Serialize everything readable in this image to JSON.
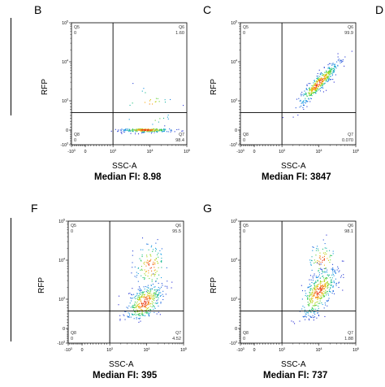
{
  "panel_letters_partial": [
    "D"
  ],
  "chart_data": [
    {
      "panel": "B",
      "type": "scatter",
      "xlabel": "SSC-A",
      "ylabel": "RFP",
      "caption": "Median FI: 8.98",
      "x_ticks": [
        "-10^3",
        "0",
        "10^3",
        "10^4",
        "10^5"
      ],
      "y_ticks": [
        "-10^3",
        "0",
        "10^3",
        "10^4",
        "10^5"
      ],
      "gate_x": 1000,
      "gate_y": 600,
      "quadrants": [
        {
          "name": "Q5",
          "value": "0"
        },
        {
          "name": "Q6",
          "value": "1.60"
        },
        {
          "name": "Q7",
          "value": "98.4"
        },
        {
          "name": "Q8",
          "value": "0"
        }
      ],
      "populations": [
        {
          "cx_log": 3.9,
          "cy_log": 0.0,
          "sx": 0.35,
          "sy": 0.05,
          "n": 260
        },
        {
          "cx_log": 3.95,
          "cy_log": 2.8,
          "sx": 0.35,
          "sy": 0.3,
          "n": 30
        }
      ]
    },
    {
      "panel": "C",
      "type": "scatter",
      "xlabel": "SSC-A",
      "ylabel": "RFP",
      "caption": "Median FI: 3847",
      "x_ticks": [
        "-10^3",
        "0",
        "10^3",
        "10^4",
        "10^5"
      ],
      "y_ticks": [
        "-10^3",
        "0",
        "10^3",
        "10^4",
        "10^5"
      ],
      "gate_x": 1000,
      "gate_y": 600,
      "quadrants": [
        {
          "name": "Q5",
          "value": "0"
        },
        {
          "name": "Q6",
          "value": "99.9"
        },
        {
          "name": "Q7",
          "value": "0.070"
        },
        {
          "name": "Q8",
          "value": "0"
        }
      ],
      "populations": [
        {
          "cx_log": 4.0,
          "cy_log": 3.45,
          "sx": 0.28,
          "sy": 0.28,
          "corr": 0.92,
          "n": 420
        }
      ]
    },
    {
      "panel": "F",
      "type": "scatter",
      "xlabel": "SSC-A",
      "ylabel": "RFP",
      "caption": "Median FI: 395",
      "x_ticks": [
        "-10^3",
        "0",
        "10^3",
        "10^4",
        "10^5"
      ],
      "y_ticks": [
        "-10^3",
        "0",
        "10^3",
        "10^4",
        "10^5"
      ],
      "gate_x": 1000,
      "gate_y": 600,
      "quadrants": [
        {
          "name": "Q5",
          "value": "0"
        },
        {
          "name": "Q6",
          "value": "95.5"
        },
        {
          "name": "Q7",
          "value": "4.52"
        },
        {
          "name": "Q8",
          "value": "0"
        }
      ],
      "populations": [
        {
          "cx_log": 3.95,
          "cy_log": 2.95,
          "sx": 0.25,
          "sy": 0.22,
          "corr": 0.5,
          "n": 360
        },
        {
          "cx_log": 4.1,
          "cy_log": 3.85,
          "sx": 0.22,
          "sy": 0.3,
          "n": 130
        }
      ]
    },
    {
      "panel": "G",
      "type": "scatter",
      "xlabel": "SSC-A",
      "ylabel": "RFP",
      "caption": "Median FI: 737",
      "x_ticks": [
        "-10^3",
        "0",
        "10^3",
        "10^4",
        "10^5"
      ],
      "y_ticks": [
        "-10^3",
        "0",
        "10^3",
        "10^4",
        "10^5"
      ],
      "gate_x": 1000,
      "gate_y": 600,
      "quadrants": [
        {
          "name": "Q5",
          "value": "0"
        },
        {
          "name": "Q6",
          "value": "98.1"
        },
        {
          "name": "Q7",
          "value": "1.88"
        },
        {
          "name": "Q8",
          "value": "0"
        }
      ],
      "populations": [
        {
          "cx_log": 4.0,
          "cy_log": 3.2,
          "sx": 0.25,
          "sy": 0.3,
          "corr": 0.65,
          "n": 420
        },
        {
          "cx_log": 4.1,
          "cy_log": 4.0,
          "sx": 0.2,
          "sy": 0.22,
          "n": 80
        }
      ]
    }
  ]
}
